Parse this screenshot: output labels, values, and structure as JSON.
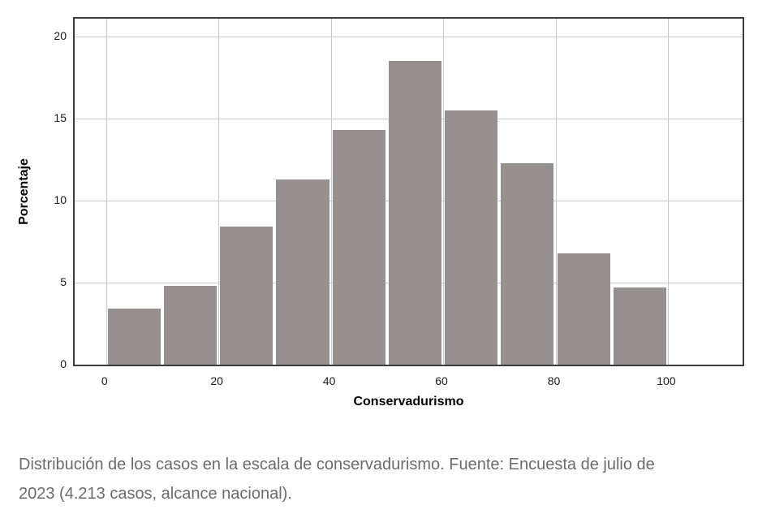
{
  "chart_data": {
    "type": "bar",
    "variant": "histogram",
    "title": "",
    "xlabel": "Conservadurismo",
    "ylabel": "Porcentaje",
    "bin_width": 10,
    "bin_starts": [
      0,
      10,
      20,
      30,
      40,
      50,
      60,
      70,
      80,
      90
    ],
    "values": [
      3.4,
      4.8,
      8.4,
      11.3,
      14.3,
      18.5,
      15.5,
      12.3,
      6.8,
      4.7
    ],
    "x_ticks": [
      0,
      20,
      40,
      60,
      80,
      100
    ],
    "y_ticks": [
      0,
      5,
      10,
      15,
      20
    ],
    "xlim": [
      -5.6,
      113.3
    ],
    "ylim": [
      0,
      21.1
    ],
    "grid": true,
    "legend": "none",
    "bar_color": "#96918f",
    "grid_color": "#c8c8c8",
    "frame_color": "#3d3d3d"
  },
  "caption": {
    "lines": [
      "Distribución de los casos en la escala de conservadurismo. Fuente: Encuesta de julio de",
      "2023 (4.213 casos, alcance nacional)."
    ],
    "full_text": "Distribución de los casos en la escala de conservadurismo. Fuente: Encuesta de julio de 2023 (4.213 casos, alcance nacional)."
  }
}
